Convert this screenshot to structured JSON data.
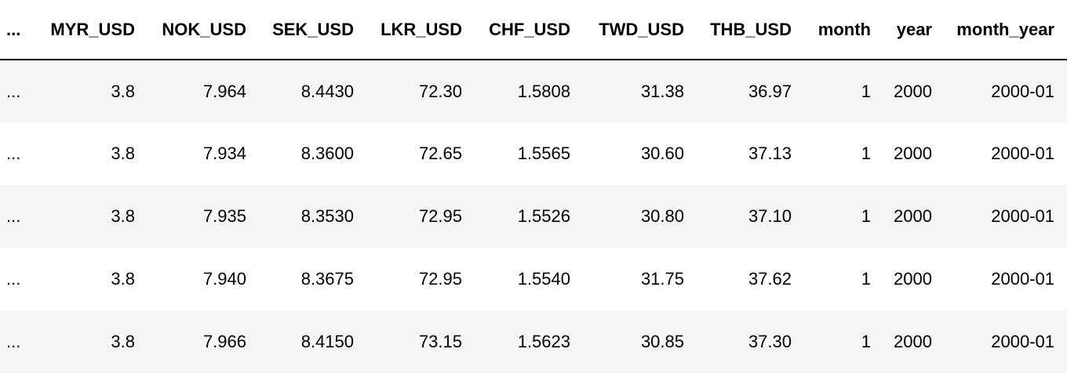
{
  "table": {
    "columns": [
      "...",
      "MYR_USD",
      "NOK_USD",
      "SEK_USD",
      "LKR_USD",
      "CHF_USD",
      "TWD_USD",
      "THB_USD",
      "month",
      "year",
      "month_year"
    ],
    "rows": [
      [
        "...",
        "3.8",
        "7.964",
        "8.4430",
        "72.30",
        "1.5808",
        "31.38",
        "36.97",
        "1",
        "2000",
        "2000-01"
      ],
      [
        "...",
        "3.8",
        "7.934",
        "8.3600",
        "72.65",
        "1.5565",
        "30.60",
        "37.13",
        "1",
        "2000",
        "2000-01"
      ],
      [
        "...",
        "3.8",
        "7.935",
        "8.3530",
        "72.95",
        "1.5526",
        "30.80",
        "37.10",
        "1",
        "2000",
        "2000-01"
      ],
      [
        "...",
        "3.8",
        "7.940",
        "8.3675",
        "72.95",
        "1.5540",
        "31.75",
        "37.62",
        "1",
        "2000",
        "2000-01"
      ],
      [
        "...",
        "3.8",
        "7.966",
        "8.4150",
        "73.15",
        "1.5623",
        "30.85",
        "37.30",
        "1",
        "2000",
        "2000-01"
      ]
    ]
  }
}
